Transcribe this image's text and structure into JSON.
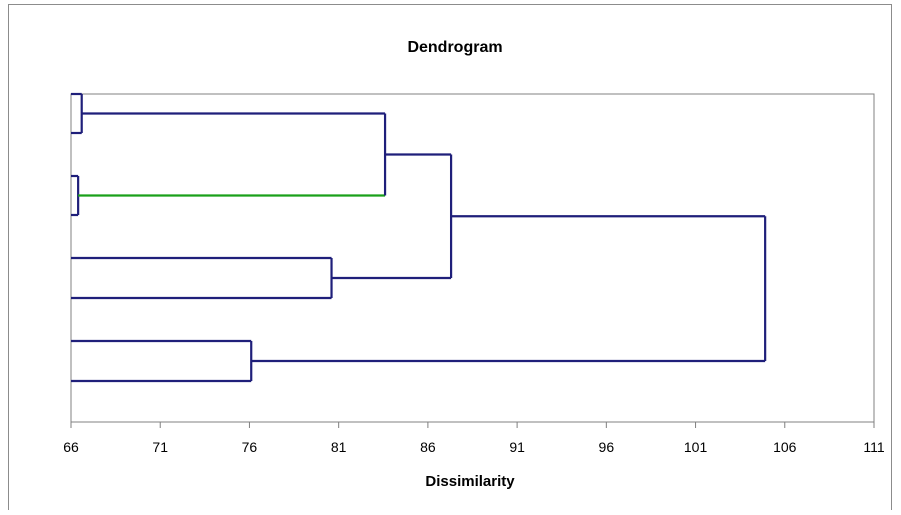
{
  "chart_data": {
    "type": "dendrogram",
    "title": "Dendrogram",
    "xlabel": "Dissimilarity",
    "ylabel": "",
    "xlim": [
      66,
      111
    ],
    "xticks": [
      66,
      71,
      76,
      81,
      86,
      91,
      96,
      101,
      106,
      111
    ],
    "grid": false,
    "leaves": 8,
    "merges": [
      {
        "id": "m1",
        "left": "leaf-1",
        "right": "leaf-2",
        "height": 66.6
      },
      {
        "id": "m2",
        "left": "leaf-3",
        "right": "leaf-4",
        "height": 66.4
      },
      {
        "id": "m3",
        "left": "leaf-5",
        "right": "leaf-6",
        "height": 80.6
      },
      {
        "id": "m4",
        "left": "leaf-7",
        "right": "leaf-8",
        "height": 76.1
      },
      {
        "id": "m5",
        "left": "m1",
        "right": "m2",
        "height": 83.6
      },
      {
        "id": "m6",
        "left": "m5",
        "right": "m3",
        "height": 87.3
      },
      {
        "id": "m7",
        "left": "m6",
        "right": "m4",
        "height": 104.9
      }
    ],
    "colors": {
      "link": "#1f1f7a",
      "highlight_link": "#1aa01a",
      "axis": "#7f7f7f",
      "plot_border": "#808080"
    }
  }
}
